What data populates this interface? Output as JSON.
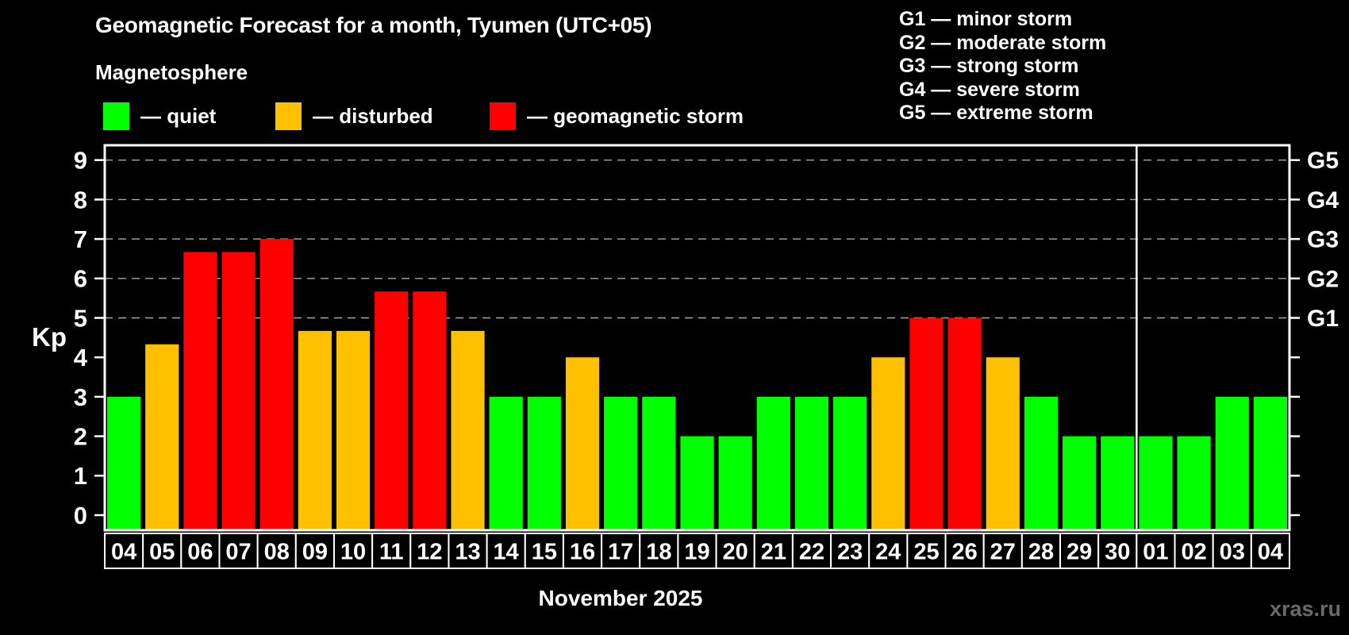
{
  "header": {
    "title": "Geomagnetic Forecast for a month, Tyumen (UTC+05)",
    "subtitle": "Magnetosphere",
    "legend": [
      {
        "state": "quiet",
        "label": "— quiet"
      },
      {
        "state": "disturbed",
        "label": "— disturbed"
      },
      {
        "state": "storm",
        "label": "— geomagnetic storm"
      }
    ]
  },
  "g_scale_legend": [
    "G1 — minor storm",
    "G2 — moderate storm",
    "G3 — strong storm",
    "G4 — severe storm",
    "G5 — extreme storm"
  ],
  "colors": {
    "quiet": "#00ff00",
    "disturbed": "#ffc000",
    "storm": "#ff0000",
    "background": "#000000",
    "text": "#ffffff",
    "grid": "#a8a8a8",
    "axis": "#ffffff",
    "watermark": "#696969"
  },
  "axis": {
    "kp_label": "Kp",
    "x_axis_label": "November 2025",
    "y_ticks": [
      0,
      1,
      2,
      3,
      4,
      5,
      6,
      7,
      8,
      9
    ],
    "g_labels": [
      {
        "label": "G1",
        "kp": 5
      },
      {
        "label": "G2",
        "kp": 6
      },
      {
        "label": "G3",
        "kp": 7
      },
      {
        "label": "G4",
        "kp": 8
      },
      {
        "label": "G5",
        "kp": 9
      }
    ]
  },
  "watermark": "xras.ru",
  "chart_data": {
    "type": "bar",
    "title": "Geomagnetic Forecast for a month, Tyumen (UTC+05)",
    "xlabel": "November 2025",
    "ylabel": "Kp",
    "ylim": [
      0,
      9
    ],
    "grid": "dashed horizontal at Kp 5-9 only",
    "legend_position": "top-left",
    "categories": [
      "04",
      "05",
      "06",
      "07",
      "08",
      "09",
      "10",
      "11",
      "12",
      "13",
      "14",
      "15",
      "16",
      "17",
      "18",
      "19",
      "20",
      "21",
      "22",
      "23",
      "24",
      "25",
      "26",
      "27",
      "28",
      "29",
      "30",
      "01",
      "02",
      "03",
      "04"
    ],
    "values": [
      3,
      4.33,
      6.67,
      6.67,
      7,
      4.67,
      4.67,
      5.67,
      5.67,
      4.67,
      3,
      3,
      4,
      3,
      3,
      2,
      2,
      3,
      3,
      3,
      4,
      5,
      5,
      4,
      3,
      2,
      2,
      2,
      2,
      3,
      3
    ],
    "states": [
      "quiet",
      "disturbed",
      "storm",
      "storm",
      "storm",
      "disturbed",
      "disturbed",
      "storm",
      "storm",
      "disturbed",
      "quiet",
      "quiet",
      "disturbed",
      "quiet",
      "quiet",
      "quiet",
      "quiet",
      "quiet",
      "quiet",
      "quiet",
      "disturbed",
      "storm",
      "storm",
      "disturbed",
      "quiet",
      "quiet",
      "quiet",
      "quiet",
      "quiet",
      "quiet",
      "quiet"
    ],
    "month_separator_after_index": 26,
    "gridlines_at": [
      5,
      6,
      7,
      8,
      9
    ]
  }
}
